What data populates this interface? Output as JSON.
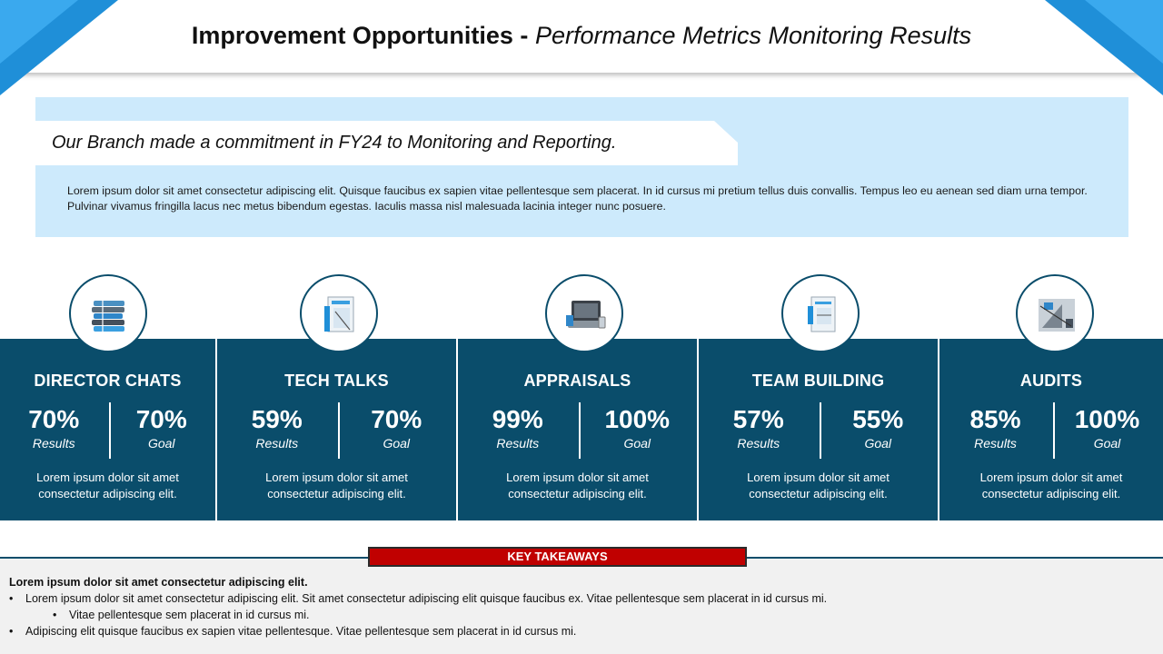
{
  "header": {
    "title_bold": "Improvement Opportunities -",
    "title_italic": "Performance Metrics Monitoring Results"
  },
  "intro": {
    "banner": "Our Branch made a commitment in FY24 to Monitoring and Reporting.",
    "body": "Lorem ipsum dolor sit amet consectetur adipiscing elit. Quisque faucibus ex sapien vitae pellentesque sem placerat. In id cursus mi pretium tellus duis convallis. Tempus leo eu aenean sed diam urna tempor. Pulvinar vivamus fringilla lacus nec metus bibendum egestas. Iaculis massa nisl malesuada lacinia integer nunc posuere."
  },
  "metrics": [
    {
      "title": "DIRECTOR CHATS",
      "results": "70%",
      "results_label": "Results",
      "goal": "70%",
      "goal_label": "Goal",
      "desc": "Lorem ipsum dolor sit amet consectetur adipiscing elit.",
      "icon": "books-icon"
    },
    {
      "title": "TECH TALKS",
      "results": "59%",
      "results_label": "Results",
      "goal": "70%",
      "goal_label": "Goal",
      "desc": "Lorem ipsum dolor sit amet consectetur adipiscing elit.",
      "icon": "blueprint-icon"
    },
    {
      "title": "APPRAISALS",
      "results": "99%",
      "results_label": "Results",
      "goal": "100%",
      "goal_label": "Goal",
      "desc": "Lorem ipsum dolor sit amet consectetur adipiscing elit.",
      "icon": "laptop-icon"
    },
    {
      "title": "TEAM BUILDING",
      "results": "57%",
      "results_label": "Results",
      "goal": "55%",
      "goal_label": "Goal",
      "desc": "Lorem ipsum dolor sit amet consectetur adipiscing elit.",
      "icon": "documents-icon"
    },
    {
      "title": "AUDITS",
      "results": "85%",
      "results_label": "Results",
      "goal": "100%",
      "goal_label": "Goal",
      "desc": "Lorem ipsum dolor sit amet consectetur adipiscing elit.",
      "icon": "drafting-tools-icon"
    }
  ],
  "takeaways": {
    "label": "KEY TAKEAWAYS",
    "heading": "Lorem ipsum dolor sit amet consectetur adipiscing elit.",
    "bullet1": "Lorem ipsum dolor sit amet consectetur adipiscing elit. Sit amet consectetur adipiscing elit quisque faucibus ex. Vitae pellentesque sem placerat in id cursus mi.",
    "sub_bullet": "Vitae pellentesque sem placerat in id cursus mi.",
    "bullet2": "Adipiscing elit quisque faucibus ex sapien vitae pellentesque. Vitae pellentesque sem placerat in id cursus mi."
  },
  "colors": {
    "card": "#0a4d6b",
    "accent_blue": "#1f8fd8",
    "intro_bg": "#cdeafc",
    "badge_red": "#c00000"
  }
}
